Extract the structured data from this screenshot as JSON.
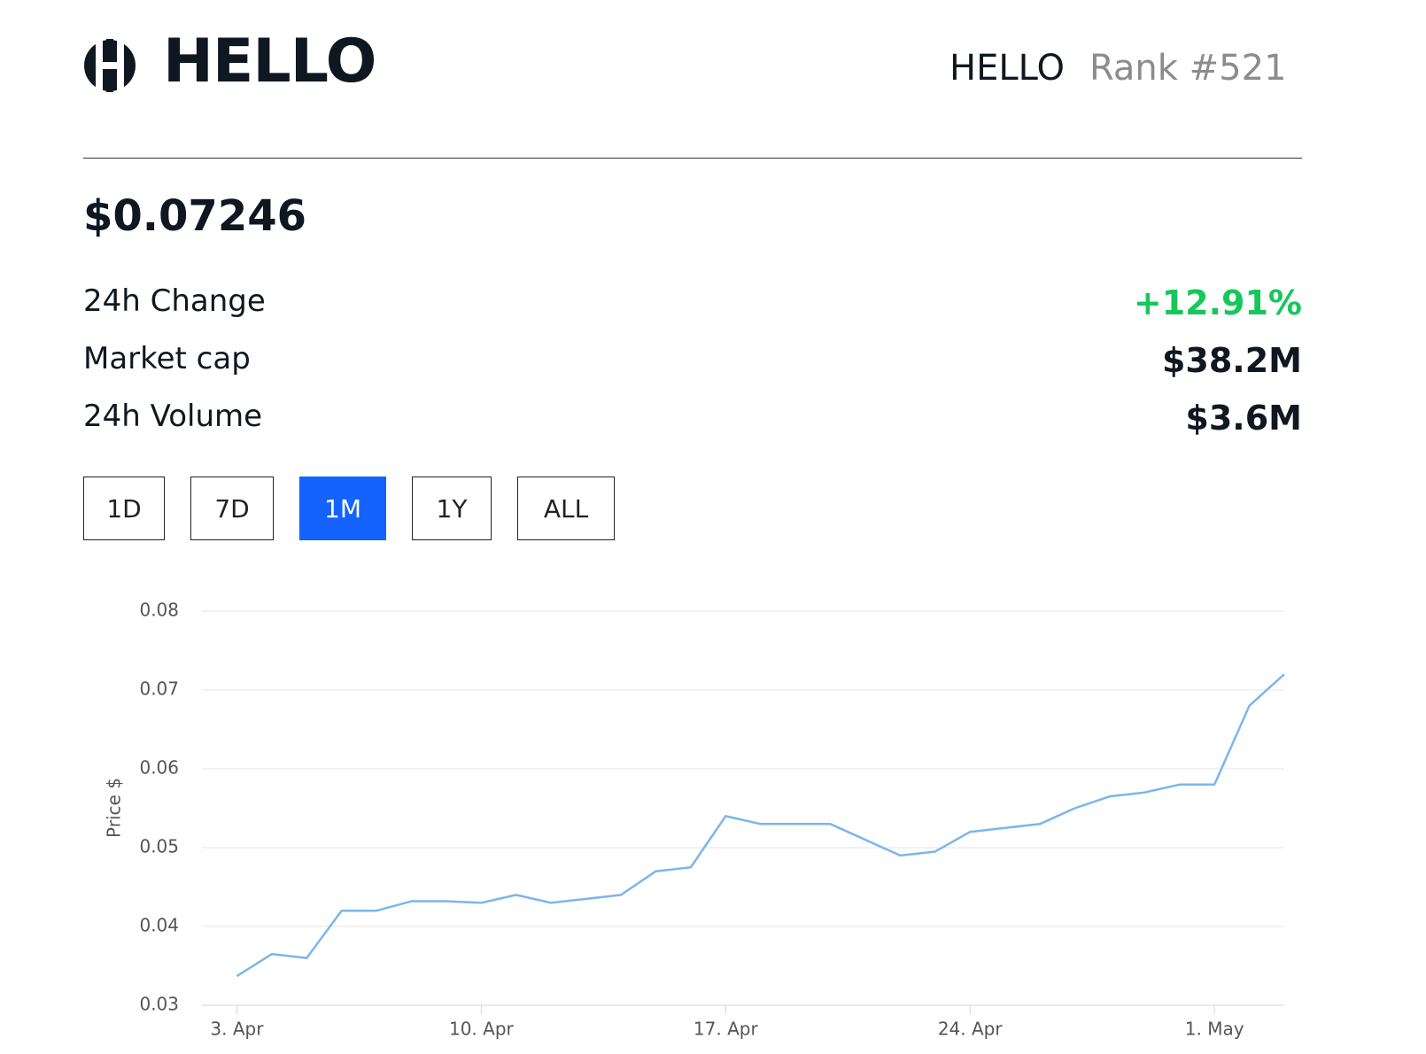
{
  "header": {
    "title": "HELLO",
    "symbol": "HELLO",
    "rank": "Rank #521"
  },
  "price": "$0.07246",
  "stats": [
    {
      "label": "24h Change",
      "value": "+12.91%",
      "color": "#16c75a"
    },
    {
      "label": "Market cap",
      "value": "$38.2M",
      "color": "#0f1720"
    },
    {
      "label": "24h Volume",
      "value": "$3.6M",
      "color": "#0f1720"
    }
  ],
  "ranges": [
    "1D",
    "7D",
    "1M",
    "1Y",
    "ALL"
  ],
  "active_range": "1M",
  "chart_data": {
    "type": "line",
    "y_label": "Price $",
    "x": [
      "04-03",
      "04-04",
      "04-05",
      "04-06",
      "04-07",
      "04-08",
      "04-09",
      "04-10",
      "04-11",
      "04-12",
      "04-13",
      "04-14",
      "04-15",
      "04-16",
      "04-17",
      "04-18",
      "04-19",
      "04-20",
      "04-21",
      "04-22",
      "04-23",
      "04-24",
      "04-25",
      "04-26",
      "04-27",
      "04-28",
      "04-29",
      "04-30",
      "05-01",
      "05-02",
      "05-03"
    ],
    "series": [
      {
        "name": "Price",
        "color": "#7cb5ec",
        "values": [
          0.0337,
          0.0365,
          0.036,
          0.042,
          0.042,
          0.0432,
          0.0432,
          0.043,
          0.044,
          0.043,
          0.0435,
          0.044,
          0.047,
          0.0475,
          0.054,
          0.053,
          0.053,
          0.053,
          0.051,
          0.049,
          0.0495,
          0.052,
          0.0525,
          0.053,
          0.055,
          0.0565,
          0.057,
          0.058,
          0.058,
          0.068,
          0.072
        ]
      }
    ],
    "xlim": [
      "04-02",
      "05-03"
    ],
    "xticks": [
      {
        "value": "04-03",
        "label": "3. Apr"
      },
      {
        "value": "04-10",
        "label": "10. Apr"
      },
      {
        "value": "04-17",
        "label": "17. Apr"
      },
      {
        "value": "04-24",
        "label": "24. Apr"
      },
      {
        "value": "05-01",
        "label": "1. May"
      }
    ],
    "ylim": [
      0.03,
      0.08
    ],
    "yticks": [
      0.03,
      0.04,
      0.05,
      0.06,
      0.07,
      0.08
    ],
    "grid": true
  }
}
